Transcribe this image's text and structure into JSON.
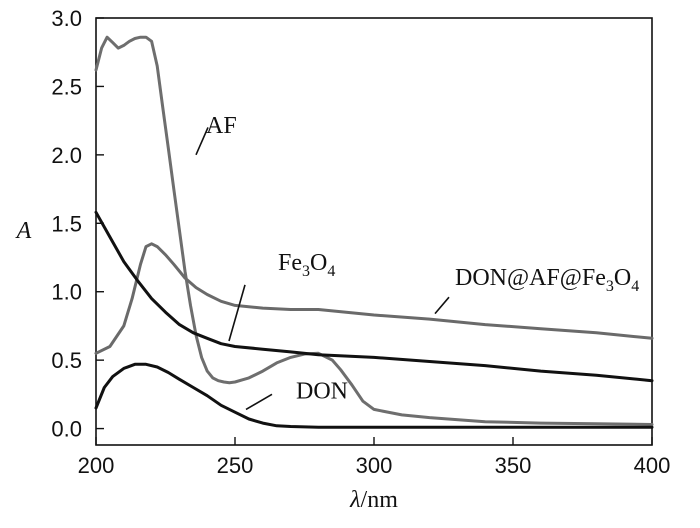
{
  "chart_data": {
    "type": "line",
    "xlabel_symbol": "λ",
    "xlabel_unit": "/nm",
    "ylabel": "A",
    "xlim": [
      200,
      400
    ],
    "ylim": [
      -0.12,
      3.0
    ],
    "xticks": [
      200,
      250,
      300,
      350,
      400
    ],
    "xtick_labels": [
      "200",
      "250",
      "300",
      "350",
      "400"
    ],
    "yticks": [
      0.0,
      0.5,
      1.0,
      1.5,
      2.0,
      2.5,
      3.0
    ],
    "ytick_labels": [
      "0.0",
      "0.5",
      "1.0",
      "1.5",
      "2.0",
      "2.5",
      "3.0"
    ],
    "grid": false,
    "series": [
      {
        "name": "AF",
        "color": "#6e6e6e",
        "x": [
          200,
          202,
          204,
          206,
          208,
          210,
          212,
          214,
          216,
          218,
          220,
          222,
          224,
          226,
          228,
          230,
          232,
          234,
          236,
          238,
          240,
          242,
          244,
          246,
          248,
          250,
          255,
          260,
          265,
          270,
          275,
          280,
          285,
          288,
          292,
          296,
          300,
          310,
          320,
          340,
          360,
          380,
          400
        ],
        "y": [
          2.62,
          2.78,
          2.86,
          2.82,
          2.78,
          2.8,
          2.83,
          2.85,
          2.86,
          2.86,
          2.83,
          2.65,
          2.35,
          2.05,
          1.75,
          1.45,
          1.15,
          0.9,
          0.68,
          0.52,
          0.42,
          0.37,
          0.35,
          0.34,
          0.335,
          0.34,
          0.37,
          0.42,
          0.48,
          0.52,
          0.545,
          0.55,
          0.5,
          0.43,
          0.32,
          0.2,
          0.14,
          0.1,
          0.08,
          0.05,
          0.04,
          0.035,
          0.03
        ]
      },
      {
        "name": "DON@AF@Fe3O4",
        "color": "#6a6a6a",
        "x": [
          200,
          205,
          210,
          213,
          216,
          218,
          220,
          222,
          225,
          228,
          232,
          236,
          240,
          245,
          250,
          260,
          270,
          280,
          290,
          300,
          320,
          340,
          360,
          380,
          400
        ],
        "y": [
          0.55,
          0.6,
          0.75,
          0.95,
          1.2,
          1.33,
          1.35,
          1.33,
          1.27,
          1.2,
          1.1,
          1.03,
          0.98,
          0.93,
          0.9,
          0.88,
          0.87,
          0.87,
          0.85,
          0.83,
          0.8,
          0.76,
          0.73,
          0.7,
          0.66
        ]
      },
      {
        "name": "Fe3O4",
        "color": "#111111",
        "x": [
          200,
          205,
          210,
          215,
          220,
          225,
          230,
          235,
          240,
          245,
          250,
          260,
          270,
          280,
          300,
          320,
          340,
          360,
          380,
          400
        ],
        "y": [
          1.58,
          1.4,
          1.22,
          1.08,
          0.95,
          0.85,
          0.76,
          0.7,
          0.66,
          0.62,
          0.6,
          0.58,
          0.56,
          0.54,
          0.52,
          0.49,
          0.46,
          0.42,
          0.39,
          0.35
        ]
      },
      {
        "name": "DON",
        "color": "#111111",
        "x": [
          200,
          203,
          206,
          210,
          214,
          218,
          222,
          226,
          230,
          235,
          240,
          245,
          250,
          255,
          260,
          265,
          270,
          280,
          300,
          400
        ],
        "y": [
          0.15,
          0.3,
          0.38,
          0.44,
          0.47,
          0.47,
          0.45,
          0.41,
          0.36,
          0.3,
          0.24,
          0.17,
          0.12,
          0.07,
          0.04,
          0.02,
          0.015,
          0.01,
          0.01,
          0.01
        ]
      }
    ],
    "annotations": [
      {
        "series": "AF",
        "main": "AF",
        "sub": "",
        "main2": "",
        "sub2": "",
        "x": 206,
        "y": 2.16,
        "line": [
          208,
          2.2,
          196,
          2.0
        ]
      },
      {
        "series": "Fe3O4",
        "main": "Fe",
        "sub": "3",
        "main2": "O",
        "sub2": "4",
        "x": 278,
        "y": 1.16,
        "line": [
          245,
          1.05,
          229,
          0.64
        ]
      },
      {
        "series": "DON@AF@Fe3O4",
        "main": "DON@AF@Fe",
        "sub": "3",
        "main2": "O",
        "sub2": "4",
        "x": 455,
        "y": 1.05,
        "line": [
          449,
          0.96,
          435,
          0.84
        ]
      },
      {
        "series": "DON",
        "main": "DON",
        "sub": "",
        "main2": "",
        "sub2": "",
        "x": 296,
        "y": 0.22,
        "line": [
          272,
          0.25,
          246,
          0.14
        ]
      }
    ]
  }
}
